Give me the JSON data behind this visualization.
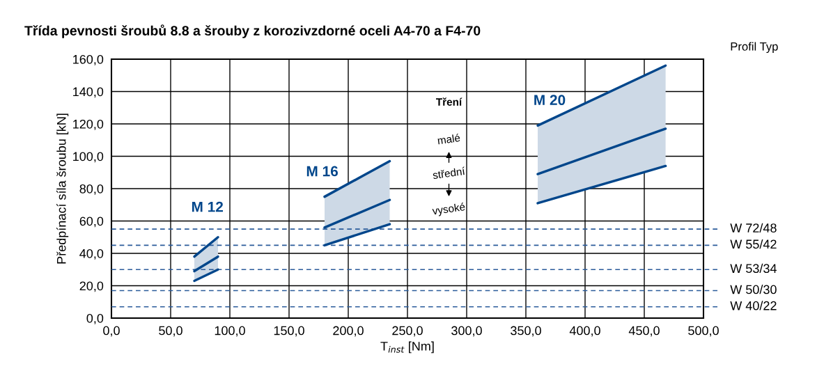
{
  "chart_data": {
    "type": "line",
    "title": "Třída pevnosti šroubů 8.8 a šrouby z korozivzdorné oceli A4-70 a F4-70",
    "xlabel": "T$_{inst}$ [Nm]",
    "ylabel": "Předpínací síla šroubu [kN]",
    "xlim": [
      0,
      500
    ],
    "ylim": [
      0,
      160
    ],
    "xticks": [
      {
        "value": 0,
        "label": "0,0"
      },
      {
        "value": 50,
        "label": "50,0"
      },
      {
        "value": 100,
        "label": "100,0"
      },
      {
        "value": 150,
        "label": "150,0"
      },
      {
        "value": 200,
        "label": "200,0"
      },
      {
        "value": 250,
        "label": "250,0"
      },
      {
        "value": 300,
        "label": "300,0"
      },
      {
        "value": 350,
        "label": "350,0"
      },
      {
        "value": 400,
        "label": "400,0"
      },
      {
        "value": 450,
        "label": "450,0"
      },
      {
        "value": 500,
        "label": "500,0"
      }
    ],
    "yticks": [
      {
        "value": 0,
        "label": "0,0"
      },
      {
        "value": 20,
        "label": "20,0"
      },
      {
        "value": 40,
        "label": "40,0"
      },
      {
        "value": 60,
        "label": "60,0"
      },
      {
        "value": 80,
        "label": "80,0"
      },
      {
        "value": 100,
        "label": "100,0"
      },
      {
        "value": 120,
        "label": "120,0"
      },
      {
        "value": 140,
        "label": "140,0"
      },
      {
        "value": 160,
        "label": "160,0"
      }
    ],
    "grid": true,
    "line_style": "solid",
    "marker": "none",
    "series": [
      {
        "color": "#00468b",
        "x": [
          70,
          90
        ],
        "values": [
          38,
          50
        ]
      },
      {
        "color": "#00468b",
        "x": [
          70,
          90
        ],
        "values": [
          29,
          38
        ],
        "lower": [
          23,
          30
        ],
        "upper": [
          38,
          50
        ]
      },
      {
        "color": "#00468b",
        "x": [
          70,
          90
        ],
        "values": [
          23,
          30
        ]
      },
      {
        "color": "#00468b",
        "x": [
          180,
          235
        ],
        "values": [
          75,
          97
        ]
      },
      {
        "color": "#00468b",
        "x": [
          180,
          235
        ],
        "values": [
          56,
          73
        ],
        "lower": [
          45,
          58
        ],
        "upper": [
          75,
          97
        ]
      },
      {
        "color": "#00468b",
        "x": [
          180,
          235
        ],
        "values": [
          45,
          58
        ]
      },
      {
        "color": "#00468b",
        "x": [
          360,
          468
        ],
        "values": [
          119,
          156
        ]
      },
      {
        "color": "#00468b",
        "x": [
          360,
          468
        ],
        "values": [
          89,
          117
        ],
        "lower": [
          71,
          94
        ],
        "upper": [
          119,
          156
        ]
      },
      {
        "color": "#00468b",
        "x": [
          360,
          468
        ],
        "values": [
          71,
          94
        ]
      }
    ],
    "ref_lines": [
      {
        "axis": "y",
        "value": 55,
        "label": "W 72/48",
        "color": "#2a5b9a",
        "line_style": "dashed"
      },
      {
        "axis": "y",
        "value": 45,
        "label": "W 55/42",
        "color": "#2a5b9a",
        "line_style": "dashed"
      },
      {
        "axis": "y",
        "value": 30,
        "label": "W 53/34",
        "color": "#2a5b9a",
        "line_style": "dashed"
      },
      {
        "axis": "y",
        "value": 17,
        "label": "W 50/30",
        "color": "#2a5b9a",
        "line_style": "dashed"
      },
      {
        "axis": "y",
        "value": 7,
        "label": "W 40/22",
        "color": "#2a5b9a",
        "line_style": "dashed"
      }
    ],
    "annotations": [
      "M 12",
      "M 16",
      "M 20",
      "Profil Typ",
      "Tření",
      "malé",
      "střední",
      "vysoké"
    ]
  }
}
